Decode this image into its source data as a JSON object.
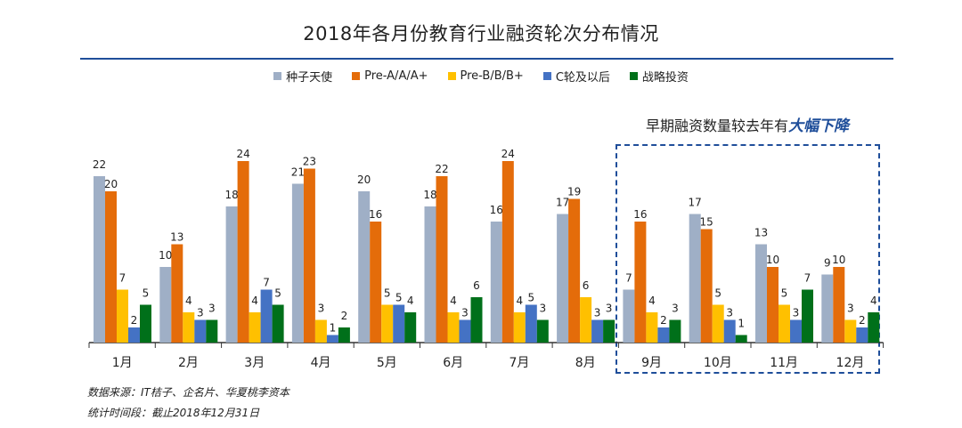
{
  "title": "2018年各月份教育行业融资轮次分布情况",
  "legend": [
    {
      "name": "种子天使",
      "color": "#9fafc6"
    },
    {
      "name": "Pre-A/A/A+",
      "color": "#e46c0a"
    },
    {
      "name": "Pre-B/B/B+",
      "color": "#ffc000"
    },
    {
      "name": "C轮及以后",
      "color": "#4472c4"
    },
    {
      "name": "战略投资",
      "color": "#00701a"
    }
  ],
  "callout": {
    "prefix": "早期融资数量较去年有",
    "emphasis": "大幅下降"
  },
  "notes": {
    "source": "数据来源：IT桔子、企名片、华夏桃李资本",
    "period": "统计时间段：截止2018年12月31日"
  },
  "chart_data": {
    "type": "bar",
    "categories": [
      "1月",
      "2月",
      "3月",
      "4月",
      "5月",
      "6月",
      "7月",
      "8月",
      "9月",
      "10月",
      "11月",
      "12月"
    ],
    "series": [
      {
        "name": "种子天使",
        "color": "#9fafc6",
        "values": [
          22,
          10,
          18,
          21,
          20,
          18,
          16,
          17,
          7,
          17,
          13,
          9
        ]
      },
      {
        "name": "Pre-A/A/A+",
        "color": "#e46c0a",
        "values": [
          20,
          13,
          24,
          23,
          16,
          22,
          24,
          19,
          16,
          15,
          10,
          10
        ]
      },
      {
        "name": "Pre-B/B/B+",
        "color": "#ffc000",
        "values": [
          7,
          4,
          4,
          3,
          5,
          4,
          4,
          6,
          4,
          5,
          5,
          3
        ]
      },
      {
        "name": "C轮及以后",
        "color": "#4472c4",
        "values": [
          2,
          3,
          7,
          1,
          5,
          3,
          5,
          3,
          2,
          3,
          3,
          2
        ]
      },
      {
        "name": "战略投资",
        "color": "#00701a",
        "values": [
          5,
          3,
          5,
          2,
          4,
          6,
          3,
          3,
          3,
          1,
          7,
          4
        ]
      }
    ],
    "ylim": [
      0,
      25
    ],
    "grid": false,
    "legend_position": "top-center"
  }
}
